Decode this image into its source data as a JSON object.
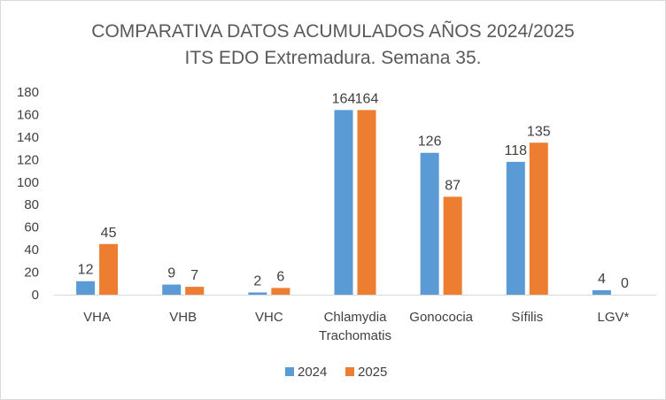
{
  "chart_data": {
    "type": "bar",
    "title": "COMPARATIVA DATOS ACUMULADOS AÑOS 2024/2025",
    "subtitle": "ITS EDO Extremadura. Semana 35.",
    "categories": [
      [
        "VHA"
      ],
      [
        "VHB"
      ],
      [
        "VHC"
      ],
      [
        "Chlamydia",
        "Trachomatis"
      ],
      [
        "Gonococia"
      ],
      [
        "Sífilis"
      ],
      [
        "LGV*"
      ]
    ],
    "series": [
      {
        "name": "2024",
        "color": "#5b9bd5",
        "values": [
          12,
          9,
          2,
          164,
          126,
          118,
          4
        ]
      },
      {
        "name": "2025",
        "color": "#ed7d31",
        "values": [
          45,
          7,
          6,
          164,
          87,
          135,
          0
        ]
      }
    ],
    "xlabel": "",
    "ylabel": "",
    "ylim": [
      0,
      180
    ],
    "yticks": [
      "0",
      "20",
      "40",
      "60",
      "80",
      "100",
      "120",
      "140",
      "160",
      "180"
    ],
    "grid": false,
    "legend_position": "bottom"
  }
}
